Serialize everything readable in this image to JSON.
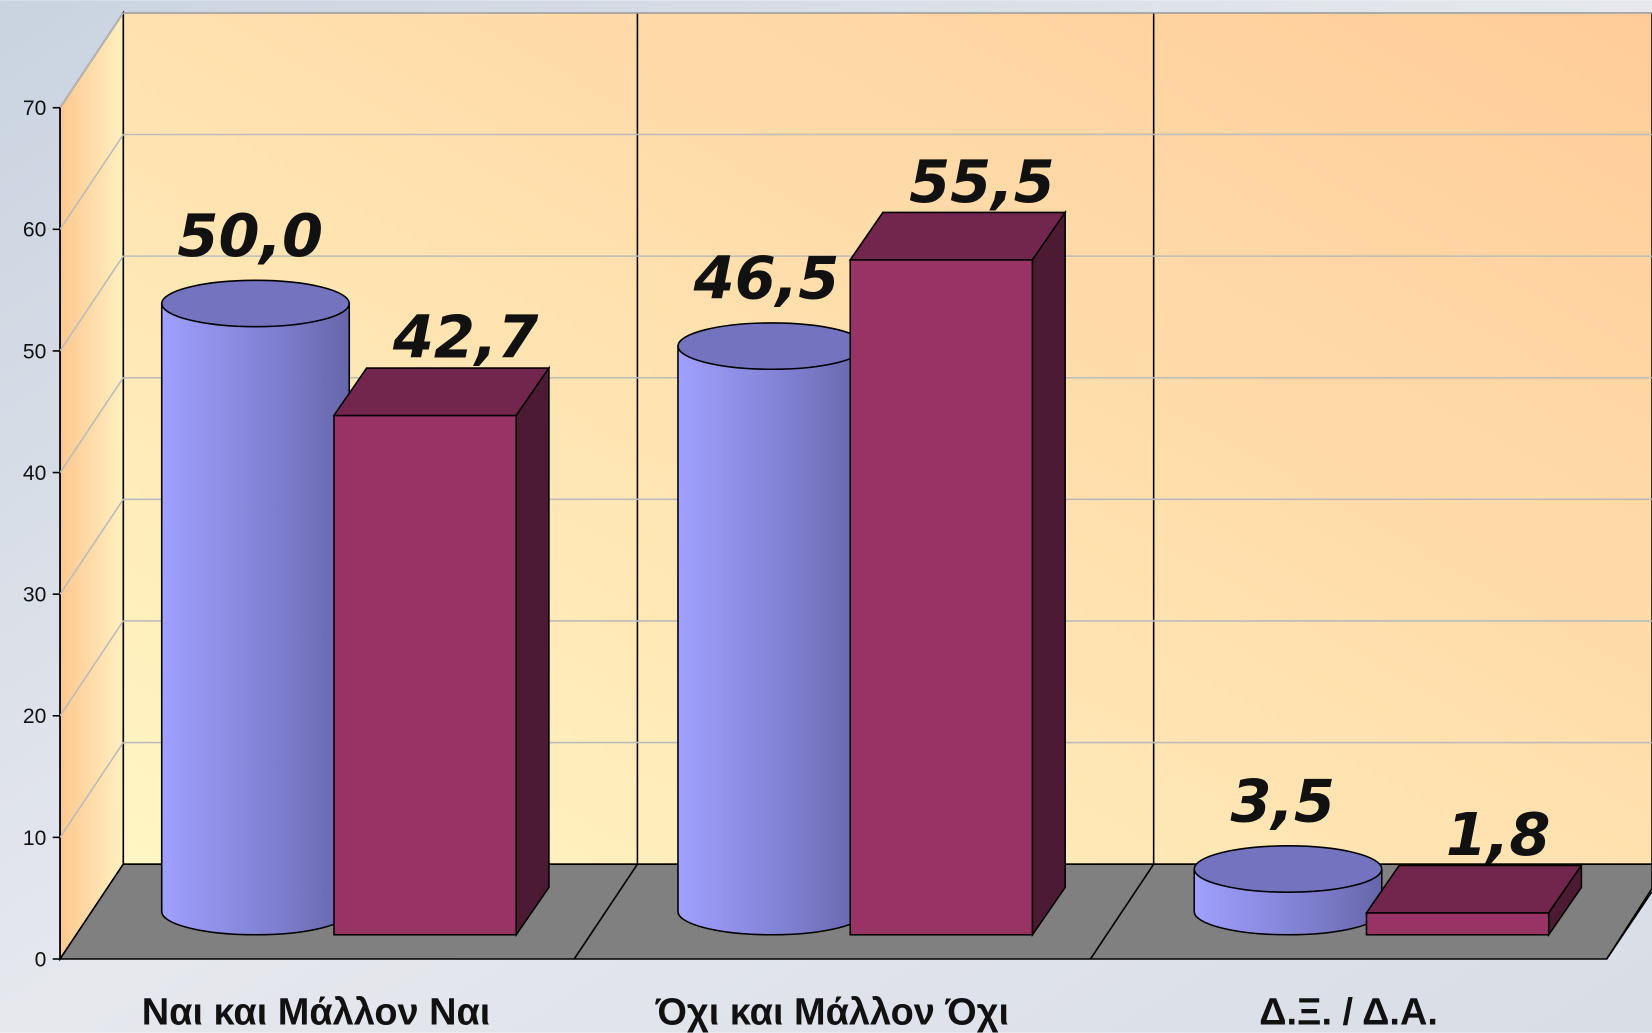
{
  "chart_data": {
    "type": "bar3d",
    "categories": [
      "Ναι και Μάλλον Ναι",
      "Όχι και Μάλλον Όχι",
      "Δ.Ξ. / Δ.Α."
    ],
    "series": [
      {
        "color": "#9999ff",
        "shape": "cylinder",
        "values": [
          50.0,
          46.5,
          3.5
        ],
        "value_labels": [
          "50,0",
          "46,5",
          "3,5"
        ]
      },
      {
        "color": "#993366",
        "shape": "box",
        "values": [
          42.7,
          55.5,
          1.8
        ],
        "value_labels": [
          "42,7",
          "55,5",
          "1,8"
        ]
      }
    ],
    "ylim": [
      0,
      70
    ],
    "yticks": [
      0,
      10,
      20,
      30,
      40,
      50,
      60,
      70
    ],
    "grid": true
  }
}
